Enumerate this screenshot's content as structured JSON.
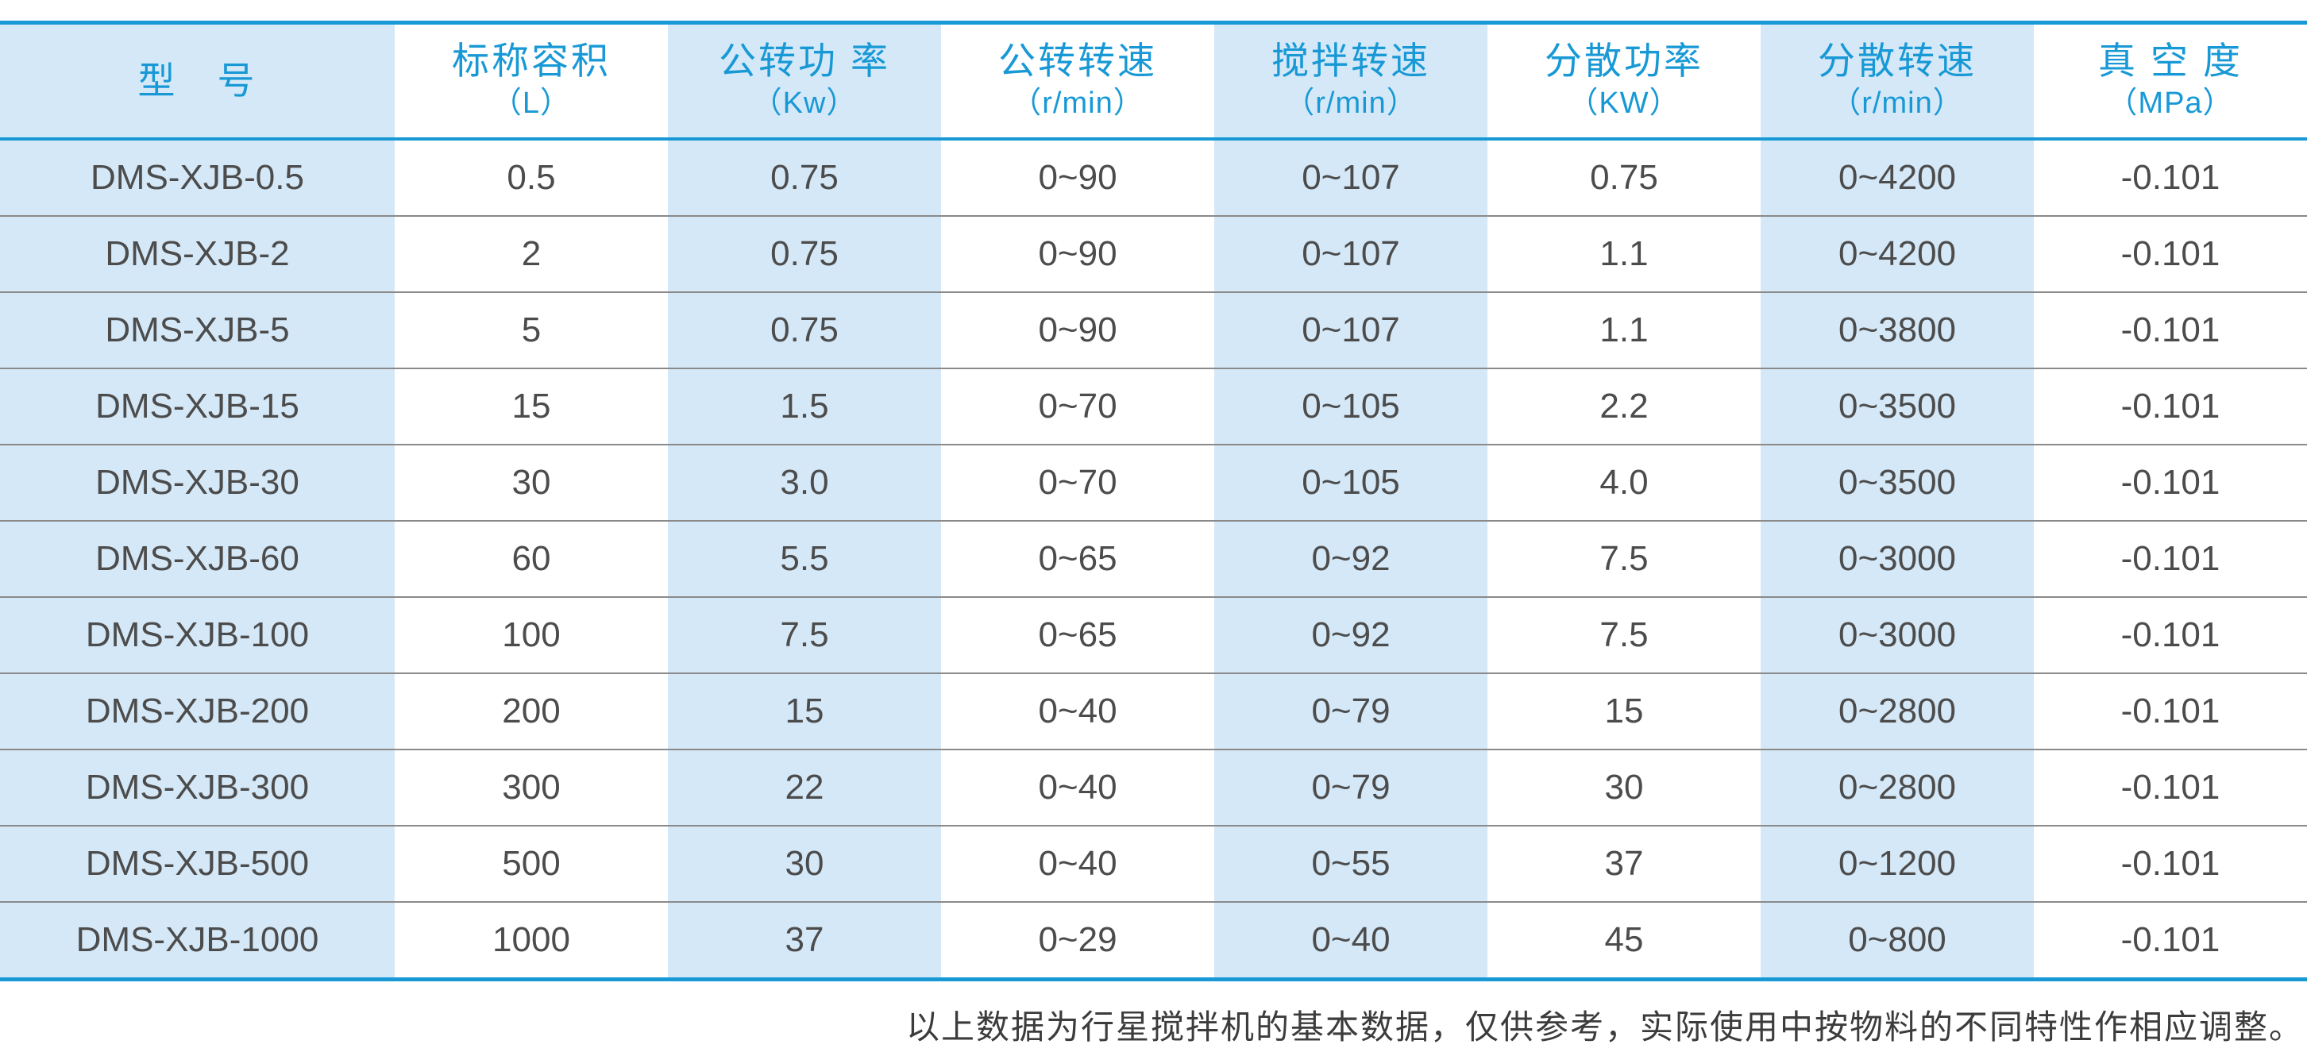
{
  "colors": {
    "accent_blue": "#1899d6",
    "stripe_blue": "#d5e8f7",
    "body_text": "#4c4c4c",
    "separator_gray": "#8a8a8a"
  },
  "table": {
    "columns": [
      {
        "title": "型　号",
        "unit": ""
      },
      {
        "title": "标称容积",
        "unit": "（L）"
      },
      {
        "title": "公转功 率",
        "unit": "（Kw）"
      },
      {
        "title": "公转转速",
        "unit": "（r/min）"
      },
      {
        "title": "搅拌转速",
        "unit": "（r/min）"
      },
      {
        "title": "分散功率",
        "unit": "（KW）"
      },
      {
        "title": "分散转速",
        "unit": "（r/min）"
      },
      {
        "title": "真 空 度",
        "unit": "（MPa）"
      }
    ],
    "rows": [
      [
        "DMS-XJB-0.5",
        "0.5",
        "0.75",
        "0~90",
        "0~107",
        "0.75",
        "0~4200",
        "-0.101"
      ],
      [
        "DMS-XJB-2",
        "2",
        "0.75",
        "0~90",
        "0~107",
        "1.1",
        "0~4200",
        "-0.101"
      ],
      [
        "DMS-XJB-5",
        "5",
        "0.75",
        "0~90",
        "0~107",
        "1.1",
        "0~3800",
        "-0.101"
      ],
      [
        "DMS-XJB-15",
        "15",
        "1.5",
        "0~70",
        "0~105",
        "2.2",
        "0~3500",
        "-0.101"
      ],
      [
        "DMS-XJB-30",
        "30",
        "3.0",
        "0~70",
        "0~105",
        "4.0",
        "0~3500",
        "-0.101"
      ],
      [
        "DMS-XJB-60",
        "60",
        "5.5",
        "0~65",
        "0~92",
        "7.5",
        "0~3000",
        "-0.101"
      ],
      [
        "DMS-XJB-100",
        "100",
        "7.5",
        "0~65",
        "0~92",
        "7.5",
        "0~3000",
        "-0.101"
      ],
      [
        "DMS-XJB-200",
        "200",
        "15",
        "0~40",
        "0~79",
        "15",
        "0~2800",
        "-0.101"
      ],
      [
        "DMS-XJB-300",
        "300",
        "22",
        "0~40",
        "0~79",
        "30",
        "0~2800",
        "-0.101"
      ],
      [
        "DMS-XJB-500",
        "500",
        "30",
        "0~40",
        "0~55",
        "37",
        "0~1200",
        "-0.101"
      ],
      [
        "DMS-XJB-1000",
        "1000",
        "37",
        "0~29",
        "0~40",
        "45",
        "0~800",
        "-0.101"
      ]
    ]
  },
  "footer": {
    "note": "以上数据为行星搅拌机的基本数据，仅供参考，实际使用中按物料的不同特性作相应调整。"
  }
}
